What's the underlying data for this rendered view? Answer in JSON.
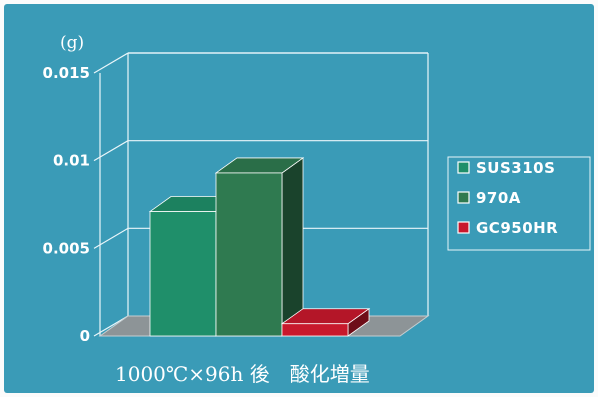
{
  "chart_data": {
    "type": "bar",
    "unit_label": "(g)",
    "categories": [
      "SUS310S",
      "970A",
      "GC950HR"
    ],
    "values": [
      0.0071,
      0.0093,
      0.0007
    ],
    "colors": [
      "#1f8f6a",
      "#2f7a50",
      "#c8182c"
    ],
    "legend": [
      "SUS310S",
      "970A",
      "GC950HR"
    ],
    "legend_position": "right",
    "yticks": [
      "0",
      "0.005",
      "0.01",
      "0.015"
    ],
    "ylim": [
      0,
      0.015
    ],
    "grid": true,
    "caption": "1000℃×96h 後　酸化増量"
  }
}
